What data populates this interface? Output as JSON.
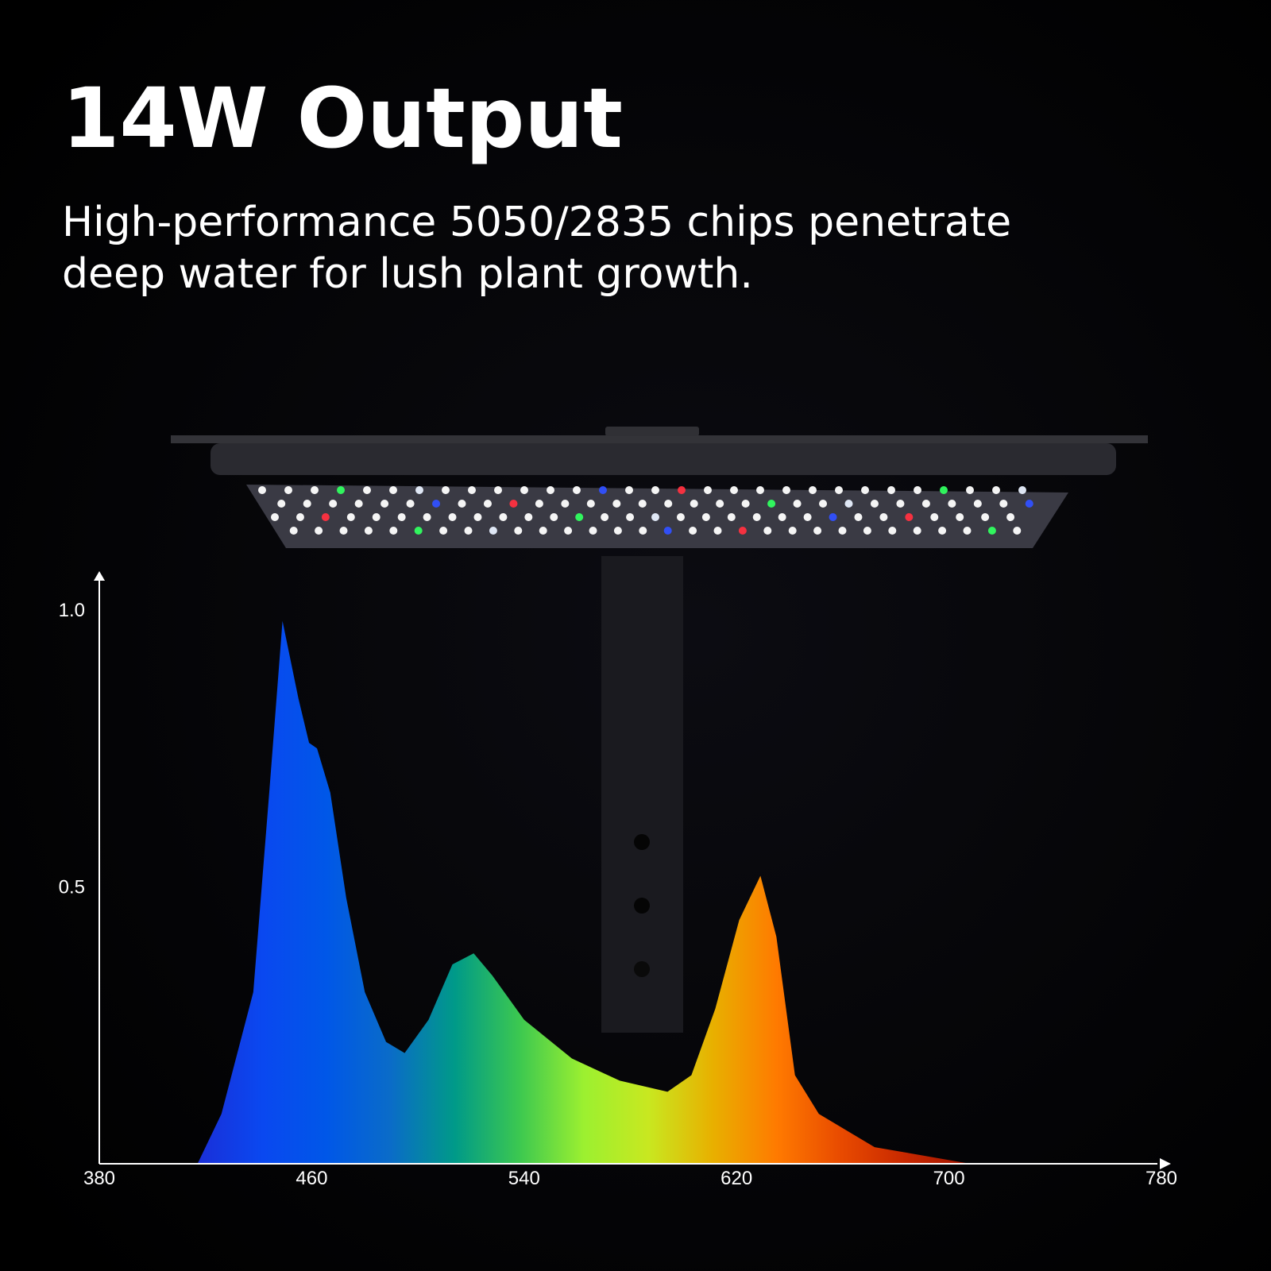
{
  "header": {
    "title": "14W Output",
    "subtitle_lines": [
      "High-performance 5050/2835 chips penetrate",
      "deep water for lush plant growth."
    ]
  },
  "chart_data": {
    "type": "area",
    "x": [
      417,
      426,
      438,
      444,
      449,
      455,
      459,
      462,
      467,
      473,
      480,
      488,
      495,
      504,
      513,
      521,
      528,
      540,
      558,
      576,
      594,
      603,
      612,
      621,
      629,
      635,
      642,
      651,
      672,
      708
    ],
    "values": [
      0,
      0.09,
      0.31,
      0.67,
      0.98,
      0.84,
      0.76,
      0.75,
      0.67,
      0.48,
      0.31,
      0.22,
      0.2,
      0.26,
      0.36,
      0.38,
      0.34,
      0.26,
      0.19,
      0.15,
      0.13,
      0.16,
      0.28,
      0.44,
      0.52,
      0.41,
      0.16,
      0.09,
      0.03,
      0
    ],
    "colors": [
      "#1a2fd8",
      "#0a48f0",
      "#0057e8",
      "#0a6cc8",
      "#009a88",
      "#3cc850",
      "#9cf030",
      "#c8e820",
      "#e8b000",
      "#ff7a00",
      "#e84a00",
      "#c82800",
      "#a01400"
    ],
    "xlim": [
      380,
      780
    ],
    "ylim": [
      0,
      1.05
    ],
    "xticks": [
      380,
      460,
      540,
      620,
      700,
      780
    ],
    "yticks": [
      0.5,
      {
        "value": 1,
        "label": "1.0"
      }
    ]
  }
}
